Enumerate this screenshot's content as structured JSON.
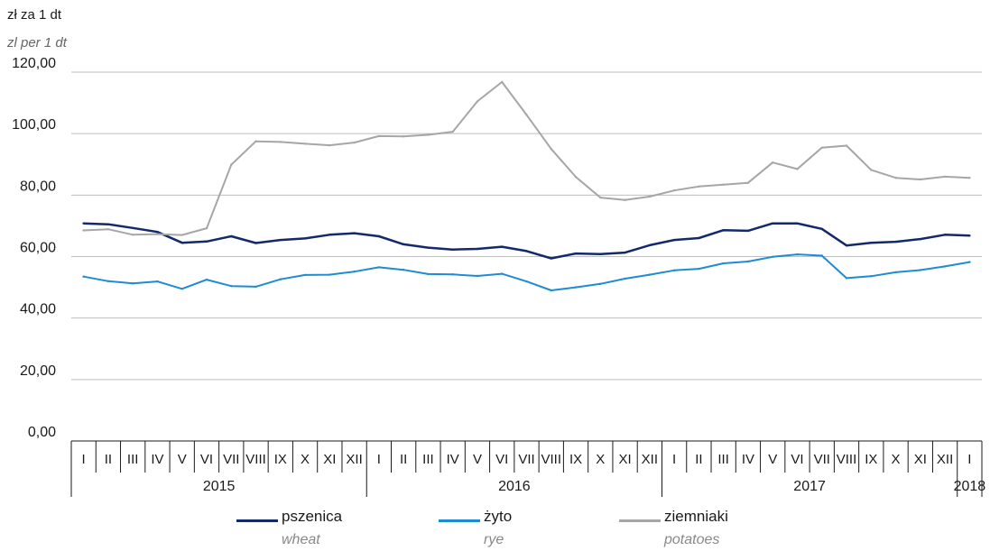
{
  "unit_pl": "zł za 1 dt",
  "unit_en": "zl per 1 dt",
  "colors": {
    "pszenica": "#13296a",
    "zyto": "#1e8bd3",
    "ziemniaki": "#a6a6a6",
    "grid": "#bfbfbf",
    "axis": "#1a1a1a"
  },
  "chart_data": {
    "type": "line",
    "ylim": [
      0,
      120
    ],
    "yticks": [
      "0,00",
      "20,00",
      "40,00",
      "60,00",
      "80,00",
      "100,00",
      "120,00"
    ],
    "yticks_values": [
      0,
      20,
      40,
      60,
      80,
      100,
      120
    ],
    "grid": true,
    "legend_position": "bottom",
    "categories": [
      "I",
      "II",
      "III",
      "IV",
      "V",
      "VI",
      "VII",
      "VIII",
      "IX",
      "X",
      "XI",
      "XII",
      "I",
      "II",
      "III",
      "IV",
      "V",
      "VI",
      "VII",
      "VIII",
      "IX",
      "X",
      "XI",
      "XII",
      "I",
      "II",
      "III",
      "IV",
      "V",
      "VI",
      "VII",
      "VIII",
      "IX",
      "X",
      "XI",
      "XII",
      "I"
    ],
    "years": [
      {
        "label": "2015",
        "start": 0,
        "end": 12
      },
      {
        "label": "2016",
        "start": 12,
        "end": 24
      },
      {
        "label": "2017",
        "start": 24,
        "end": 36
      },
      {
        "label": "2018",
        "start": 36,
        "end": 37
      }
    ],
    "series": [
      {
        "key": "pszenica",
        "name": "pszenica",
        "name_en": "wheat",
        "values": [
          70.8,
          70.5,
          69.3,
          68.0,
          64.5,
          64.9,
          66.6,
          64.4,
          65.4,
          65.9,
          67.1,
          67.6,
          66.6,
          64.0,
          62.9,
          62.3,
          62.5,
          63.2,
          61.8,
          59.4,
          61.0,
          60.8,
          61.3,
          63.7,
          65.4,
          66.0,
          68.6,
          68.4,
          70.8,
          70.8,
          69.0,
          63.6,
          64.5,
          64.8,
          65.7,
          67.1,
          66.8
        ]
      },
      {
        "key": "zyto",
        "name": "żyto",
        "name_en": "rye",
        "values": [
          53.5,
          52.0,
          51.3,
          51.9,
          49.5,
          52.5,
          50.4,
          50.2,
          52.6,
          54.0,
          54.1,
          55.1,
          56.5,
          55.7,
          54.3,
          54.2,
          53.7,
          54.4,
          51.9,
          49.0,
          50.0,
          51.1,
          52.8,
          54.1,
          55.5,
          56.0,
          57.8,
          58.4,
          59.9,
          60.7,
          60.3,
          53.0,
          53.6,
          54.9,
          55.6,
          56.8,
          58.2
        ]
      },
      {
        "key": "ziemniaki",
        "name": "ziemniaki",
        "name_en": "potatoes",
        "values": [
          68.5,
          68.9,
          67.1,
          67.3,
          67.0,
          69.2,
          89.9,
          97.5,
          97.3,
          96.7,
          96.2,
          97.1,
          99.2,
          99.1,
          99.6,
          100.6,
          110.5,
          116.8,
          106.1,
          95.0,
          85.9,
          79.2,
          78.4,
          79.5,
          81.5,
          82.8,
          83.4,
          84.0,
          90.6,
          88.5,
          95.4,
          96.1,
          88.2,
          85.6,
          85.1,
          86.0,
          85.6
        ]
      }
    ]
  }
}
